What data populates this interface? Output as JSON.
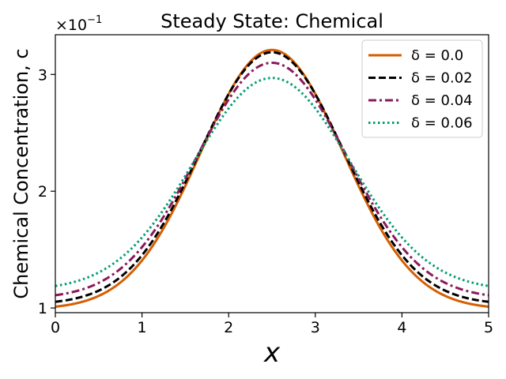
{
  "chart_data": {
    "type": "line",
    "title": "Steady State: Chemical",
    "xlabel": "x",
    "ylabel": "Chemical Concentration, c",
    "y_multiplier_label": "×10",
    "y_multiplier_exponent": "−1",
    "xlim": [
      0,
      5
    ],
    "ylim": [
      0.96,
      3.34
    ],
    "x_ticks": [
      0,
      1,
      2,
      3,
      4,
      5
    ],
    "y_ticks": [
      1,
      2,
      3
    ],
    "grid": false,
    "legend_position": "top-right",
    "curve_model": "y = a + b*exp(-(x-2.5)^2 / (2*s^2)), x sampled from 0 to 5",
    "series": [
      {
        "name": "δ = 0.0",
        "color": "#d55e00",
        "dash": "solid",
        "a": 0.99,
        "b": 2.22,
        "s": 0.82
      },
      {
        "name": "δ = 0.02",
        "color": "#000000",
        "dash": "dashed",
        "a": 1.03,
        "b": 2.16,
        "s": 0.83
      },
      {
        "name": "δ = 0.04",
        "color": "#8b1a5a",
        "dash": "dashdot",
        "a": 1.08,
        "b": 2.02,
        "s": 0.86
      },
      {
        "name": "δ = 0.06",
        "color": "#009e73",
        "dash": "dotted",
        "a": 1.15,
        "b": 1.82,
        "s": 0.9
      }
    ]
  }
}
